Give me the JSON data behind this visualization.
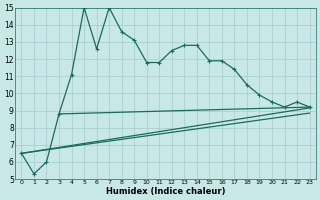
{
  "xlabel": "Humidex (Indice chaleur)",
  "background_color": "#c8e8e8",
  "grid_color": "#a8d0d0",
  "line_color": "#1a6b5a",
  "xlim": [
    -0.5,
    23.5
  ],
  "ylim": [
    5,
    15
  ],
  "xticks": [
    0,
    1,
    2,
    3,
    4,
    5,
    6,
    7,
    8,
    9,
    10,
    11,
    12,
    13,
    14,
    15,
    16,
    17,
    18,
    19,
    20,
    21,
    22,
    23
  ],
  "yticks": [
    5,
    6,
    7,
    8,
    9,
    10,
    11,
    12,
    13,
    14,
    15
  ],
  "main_x": [
    0,
    1,
    2,
    3,
    4,
    5,
    6,
    7,
    8,
    9,
    10,
    11,
    12,
    13,
    14,
    15,
    16,
    17,
    18,
    19,
    20,
    21,
    22,
    23
  ],
  "main_y": [
    6.5,
    5.3,
    6.0,
    8.8,
    11.1,
    15.0,
    12.6,
    15.0,
    13.6,
    13.1,
    11.8,
    11.8,
    12.5,
    12.8,
    12.8,
    11.9,
    11.9,
    11.4,
    10.5,
    9.9,
    9.5,
    9.2,
    9.5,
    9.2
  ],
  "flat_line_x": [
    3,
    23
  ],
  "flat_line_y": [
    8.8,
    9.2
  ],
  "diag_line1_x": [
    0,
    23
  ],
  "diag_line1_y": [
    6.5,
    9.15
  ],
  "diag_line2_x": [
    0,
    23
  ],
  "diag_line2_y": [
    6.5,
    8.85
  ]
}
